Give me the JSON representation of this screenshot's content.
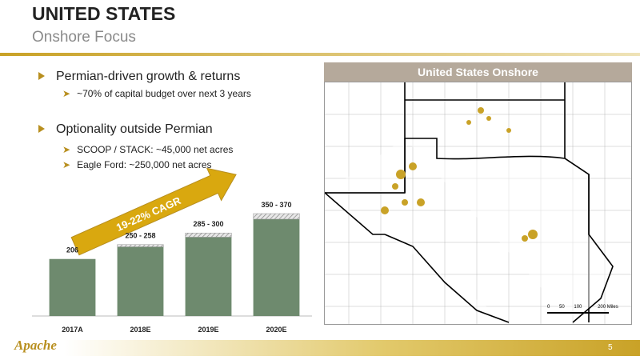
{
  "header": {
    "title": "UNITED STATES",
    "subtitle": "Onshore Focus"
  },
  "bullets": [
    {
      "text": "Permian-driven growth & returns",
      "sub": [
        "~70% of capital budget over next 3 years"
      ]
    },
    {
      "text": "Optionality outside Permian",
      "sub": [
        "SCOOP / STACK: ~45,000 net acres",
        "Eagle Ford: ~250,000 net acres"
      ]
    }
  ],
  "chart_data": {
    "type": "bar",
    "categories": [
      "2017A",
      "2018E",
      "2019E",
      "2020E"
    ],
    "series": [
      {
        "color": "#6e8a6e",
        "values": [
          206,
          250,
          285,
          350
        ]
      },
      {
        "color": "#d9d9d9",
        "values": [
          null,
          258,
          300,
          370
        ]
      }
    ],
    "value_labels": [
      "206",
      "250 - 258",
      "285 - 300",
      "350 - 370"
    ],
    "annotation": "19-22% CAGR"
  },
  "map": {
    "title": "United States Onshore",
    "scale_labels": [
      "0",
      "50",
      "100",
      "200",
      "Miles"
    ]
  },
  "footer": {
    "logo": "Apache",
    "page": "5"
  }
}
